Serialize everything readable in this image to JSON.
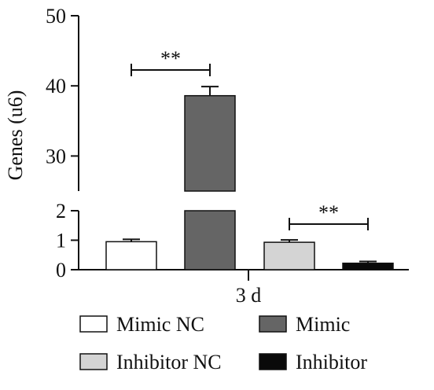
{
  "chart_data": {
    "type": "bar",
    "ylabel": "Genes (u6)",
    "xlabel": "3 d",
    "broken_axis": true,
    "upper_axis": {
      "ylim": [
        25,
        50
      ],
      "ticks": [
        30,
        40,
        50
      ]
    },
    "lower_axis": {
      "ylim": [
        0,
        2
      ],
      "ticks": [
        0,
        1,
        2
      ]
    },
    "series": [
      {
        "name": "Mimic NC",
        "value": 0.95,
        "error": 0.08,
        "color": "#ffffff"
      },
      {
        "name": "Mimic",
        "value": 38.6,
        "error": 1.3,
        "color": "#656565"
      },
      {
        "name": "Inhibitor NC",
        "value": 0.93,
        "error": 0.08,
        "color": "#d4d4d4"
      },
      {
        "name": "Inhibitor",
        "value": 0.22,
        "error": 0.06,
        "color": "#0a0a0a"
      }
    ],
    "significance": [
      {
        "from": 0,
        "to": 1,
        "label": "**"
      },
      {
        "from": 2,
        "to": 3,
        "label": "**"
      }
    ],
    "legend_position": "bottom",
    "grid": false
  }
}
